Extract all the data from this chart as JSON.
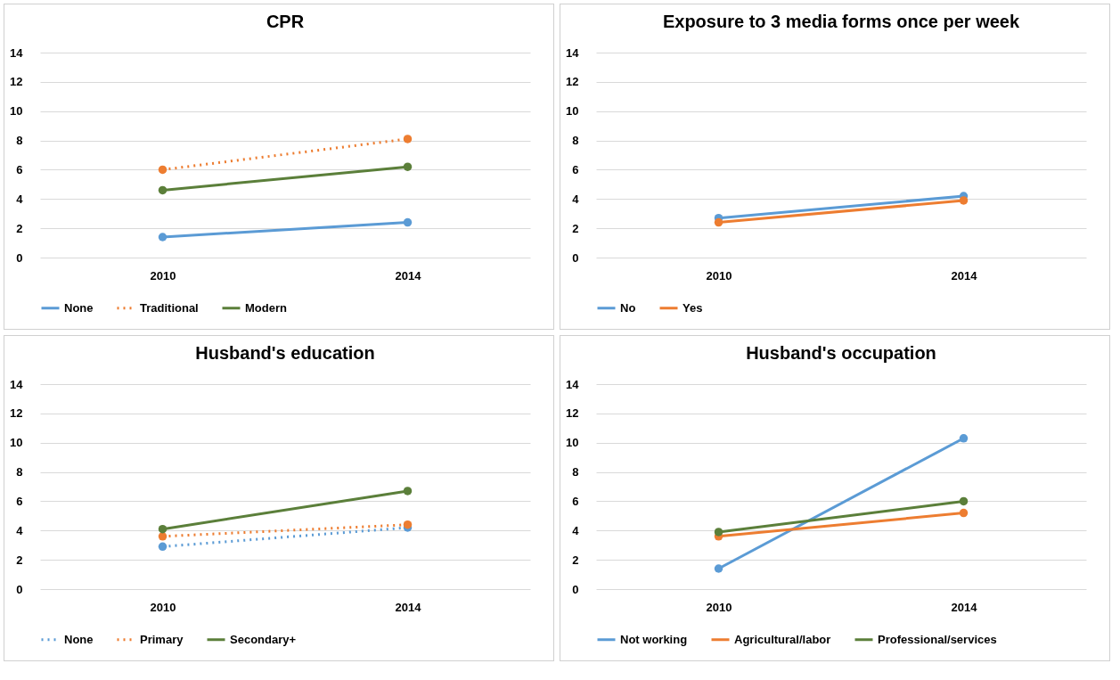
{
  "chart_data": [
    {
      "type": "line",
      "title": "CPR",
      "categories": [
        "2010",
        "2014"
      ],
      "ylim": [
        0,
        14
      ],
      "yticks": [
        0,
        2,
        4,
        6,
        8,
        10,
        12,
        14
      ],
      "grid": "y",
      "legend": "bottom",
      "marker": "circle",
      "series": [
        {
          "name": "None",
          "color": "#5b9bd5",
          "line_style": "solid",
          "values": [
            1.4,
            2.4
          ]
        },
        {
          "name": "Traditional",
          "color": "#ed7d31",
          "line_style": "dotted",
          "values": [
            6.0,
            8.1
          ]
        },
        {
          "name": "Modern",
          "color": "#5b7f3a",
          "line_style": "solid",
          "values": [
            4.6,
            6.2
          ]
        }
      ]
    },
    {
      "type": "line",
      "title": "Exposure to 3 media forms once per week",
      "categories": [
        "2010",
        "2014"
      ],
      "ylim": [
        0,
        14
      ],
      "yticks": [
        0,
        2,
        4,
        6,
        8,
        10,
        12,
        14
      ],
      "grid": "y",
      "legend": "bottom",
      "marker": "circle",
      "series": [
        {
          "name": "No",
          "color": "#5b9bd5",
          "line_style": "solid",
          "values": [
            2.7,
            4.2
          ]
        },
        {
          "name": "Yes",
          "color": "#ed7d31",
          "line_style": "solid",
          "values": [
            2.4,
            3.9
          ]
        }
      ]
    },
    {
      "type": "line",
      "title": "Husband's education",
      "categories": [
        "2010",
        "2014"
      ],
      "ylim": [
        0,
        14
      ],
      "yticks": [
        0,
        2,
        4,
        6,
        8,
        10,
        12,
        14
      ],
      "grid": "y",
      "legend": "bottom",
      "marker": "circle",
      "series": [
        {
          "name": "None",
          "color": "#5b9bd5",
          "line_style": "dotted",
          "values": [
            2.9,
            4.2
          ]
        },
        {
          "name": "Primary",
          "color": "#ed7d31",
          "line_style": "dotted",
          "values": [
            3.6,
            4.4
          ]
        },
        {
          "name": "Secondary+",
          "color": "#5b7f3a",
          "line_style": "solid",
          "values": [
            4.1,
            6.7
          ]
        }
      ]
    },
    {
      "type": "line",
      "title": "Husband's occupation",
      "categories": [
        "2010",
        "2014"
      ],
      "ylim": [
        0,
        14
      ],
      "yticks": [
        0,
        2,
        4,
        6,
        8,
        10,
        12,
        14
      ],
      "grid": "y",
      "legend": "bottom",
      "marker": "circle",
      "series": [
        {
          "name": "Not working",
          "color": "#5b9bd5",
          "line_style": "solid",
          "values": [
            1.4,
            10.3
          ]
        },
        {
          "name": "Agricultural/labor",
          "color": "#ed7d31",
          "line_style": "solid",
          "values": [
            3.6,
            5.2
          ]
        },
        {
          "name": "Professional/services",
          "color": "#5b7f3a",
          "line_style": "solid",
          "values": [
            3.9,
            6.0
          ]
        }
      ]
    }
  ]
}
